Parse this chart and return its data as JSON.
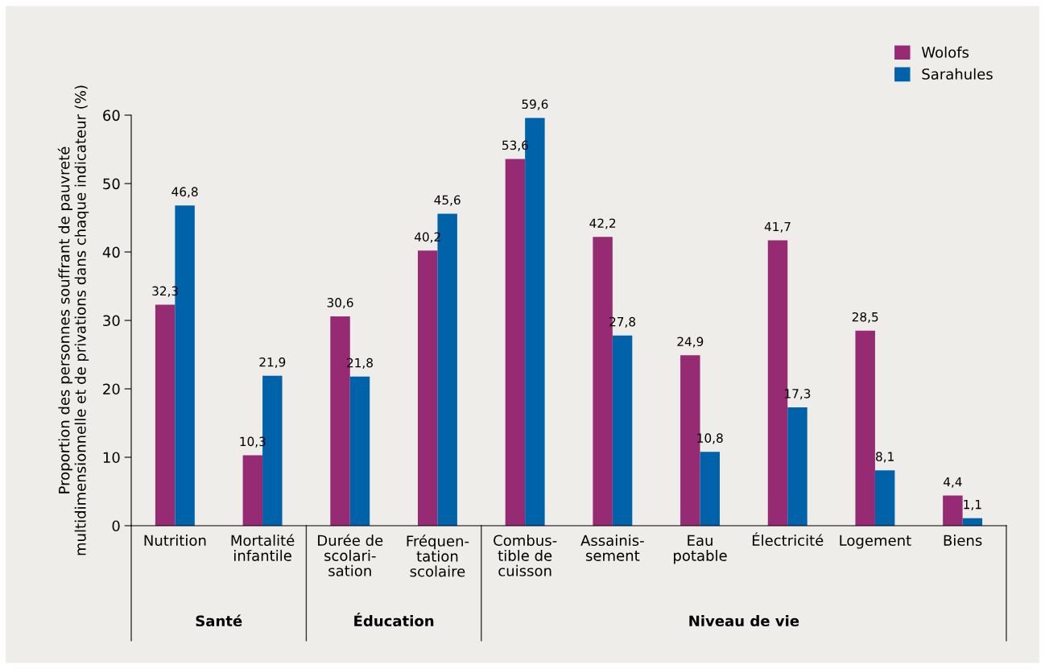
{
  "chart_data": {
    "type": "bar",
    "ylabel": "Proportion des personnes souffrant de pauvreté\nmultidimensionnelle et de privations dans chaque indicateur (%)",
    "categories": [
      "Nutrition",
      "Mortalité\ninfantile",
      "Durée de\nscolari-\nsation",
      "Fréquen-\ntation\nscolaire",
      "Combus-\ntible de\ncuisson",
      "Assainis-\nsement",
      "Eau\npotable",
      "Électricité",
      "Logement",
      "Biens"
    ],
    "series": [
      {
        "name": "Wolofs",
        "color": "#962a73",
        "values": [
          32.3,
          10.3,
          30.6,
          40.2,
          53.6,
          42.2,
          24.9,
          41.7,
          28.5,
          4.4
        ],
        "value_labels": [
          "32,3",
          "10,3",
          "30,6",
          "40,2",
          "53,6",
          "42,2",
          "24,9",
          "41,7",
          "28,5",
          "4,4"
        ]
      },
      {
        "name": "Sarahules",
        "color": "#0062a8",
        "values": [
          46.8,
          21.9,
          21.8,
          45.6,
          59.6,
          27.8,
          10.8,
          17.3,
          8.1,
          1.1
        ],
        "value_labels": [
          "46,8",
          "21,9",
          "21,8",
          "45,6",
          "59,6",
          "27,8",
          "10,8",
          "17,3",
          "8,1",
          "1,1"
        ]
      }
    ],
    "annotations": [
      "Santé",
      "Éducation",
      "Niveau de vie"
    ],
    "ylim": [
      0,
      60
    ],
    "yticks": [
      0,
      10,
      20,
      30,
      40,
      50,
      60
    ],
    "grid": false,
    "legend": "top right"
  }
}
